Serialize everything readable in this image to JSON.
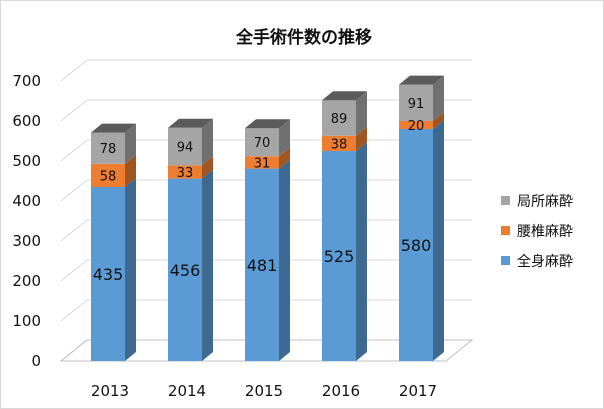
{
  "chart_data": {
    "type": "bar",
    "stacked": true,
    "style": "3d-column",
    "title": "全手術件数の推移",
    "categories": [
      "2013",
      "2014",
      "2015",
      "2016",
      "2017"
    ],
    "series": [
      {
        "name": "全身麻酔",
        "color": "#5B9BD5",
        "values": [
          435,
          456,
          481,
          525,
          580
        ]
      },
      {
        "name": "腰椎麻酔",
        "color": "#ED7D31",
        "values": [
          58,
          33,
          31,
          38,
          20
        ]
      },
      {
        "name": "局所麻酔",
        "color": "#A5A5A5",
        "values": [
          78,
          94,
          70,
          89,
          91
        ]
      }
    ],
    "ylim": [
      0,
      700
    ],
    "yticks": [
      0,
      100,
      200,
      300,
      400,
      500,
      600,
      700
    ],
    "xlabel": "",
    "ylabel": "",
    "legend": {
      "position": "right",
      "order": [
        "局所麻酔",
        "腰椎麻酔",
        "全身麻酔"
      ]
    },
    "grid": false
  }
}
